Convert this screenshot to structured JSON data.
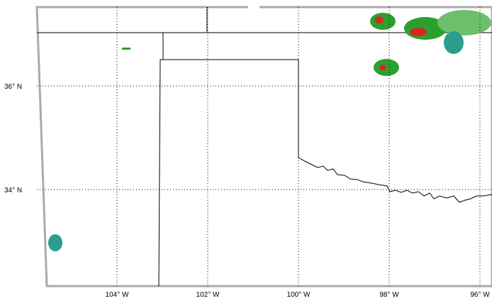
{
  "map": {
    "lat_ticks": [
      {
        "value": 36,
        "label": "36° N"
      },
      {
        "value": 34,
        "label": "34° N"
      }
    ],
    "lon_ticks": [
      {
        "value": 104,
        "label": "104° W"
      },
      {
        "value": 102,
        "label": "102° W"
      },
      {
        "value": 100,
        "label": "100° W"
      },
      {
        "value": 98,
        "label": "98° W"
      },
      {
        "value": 96,
        "label": "96° W"
      }
    ]
  }
}
